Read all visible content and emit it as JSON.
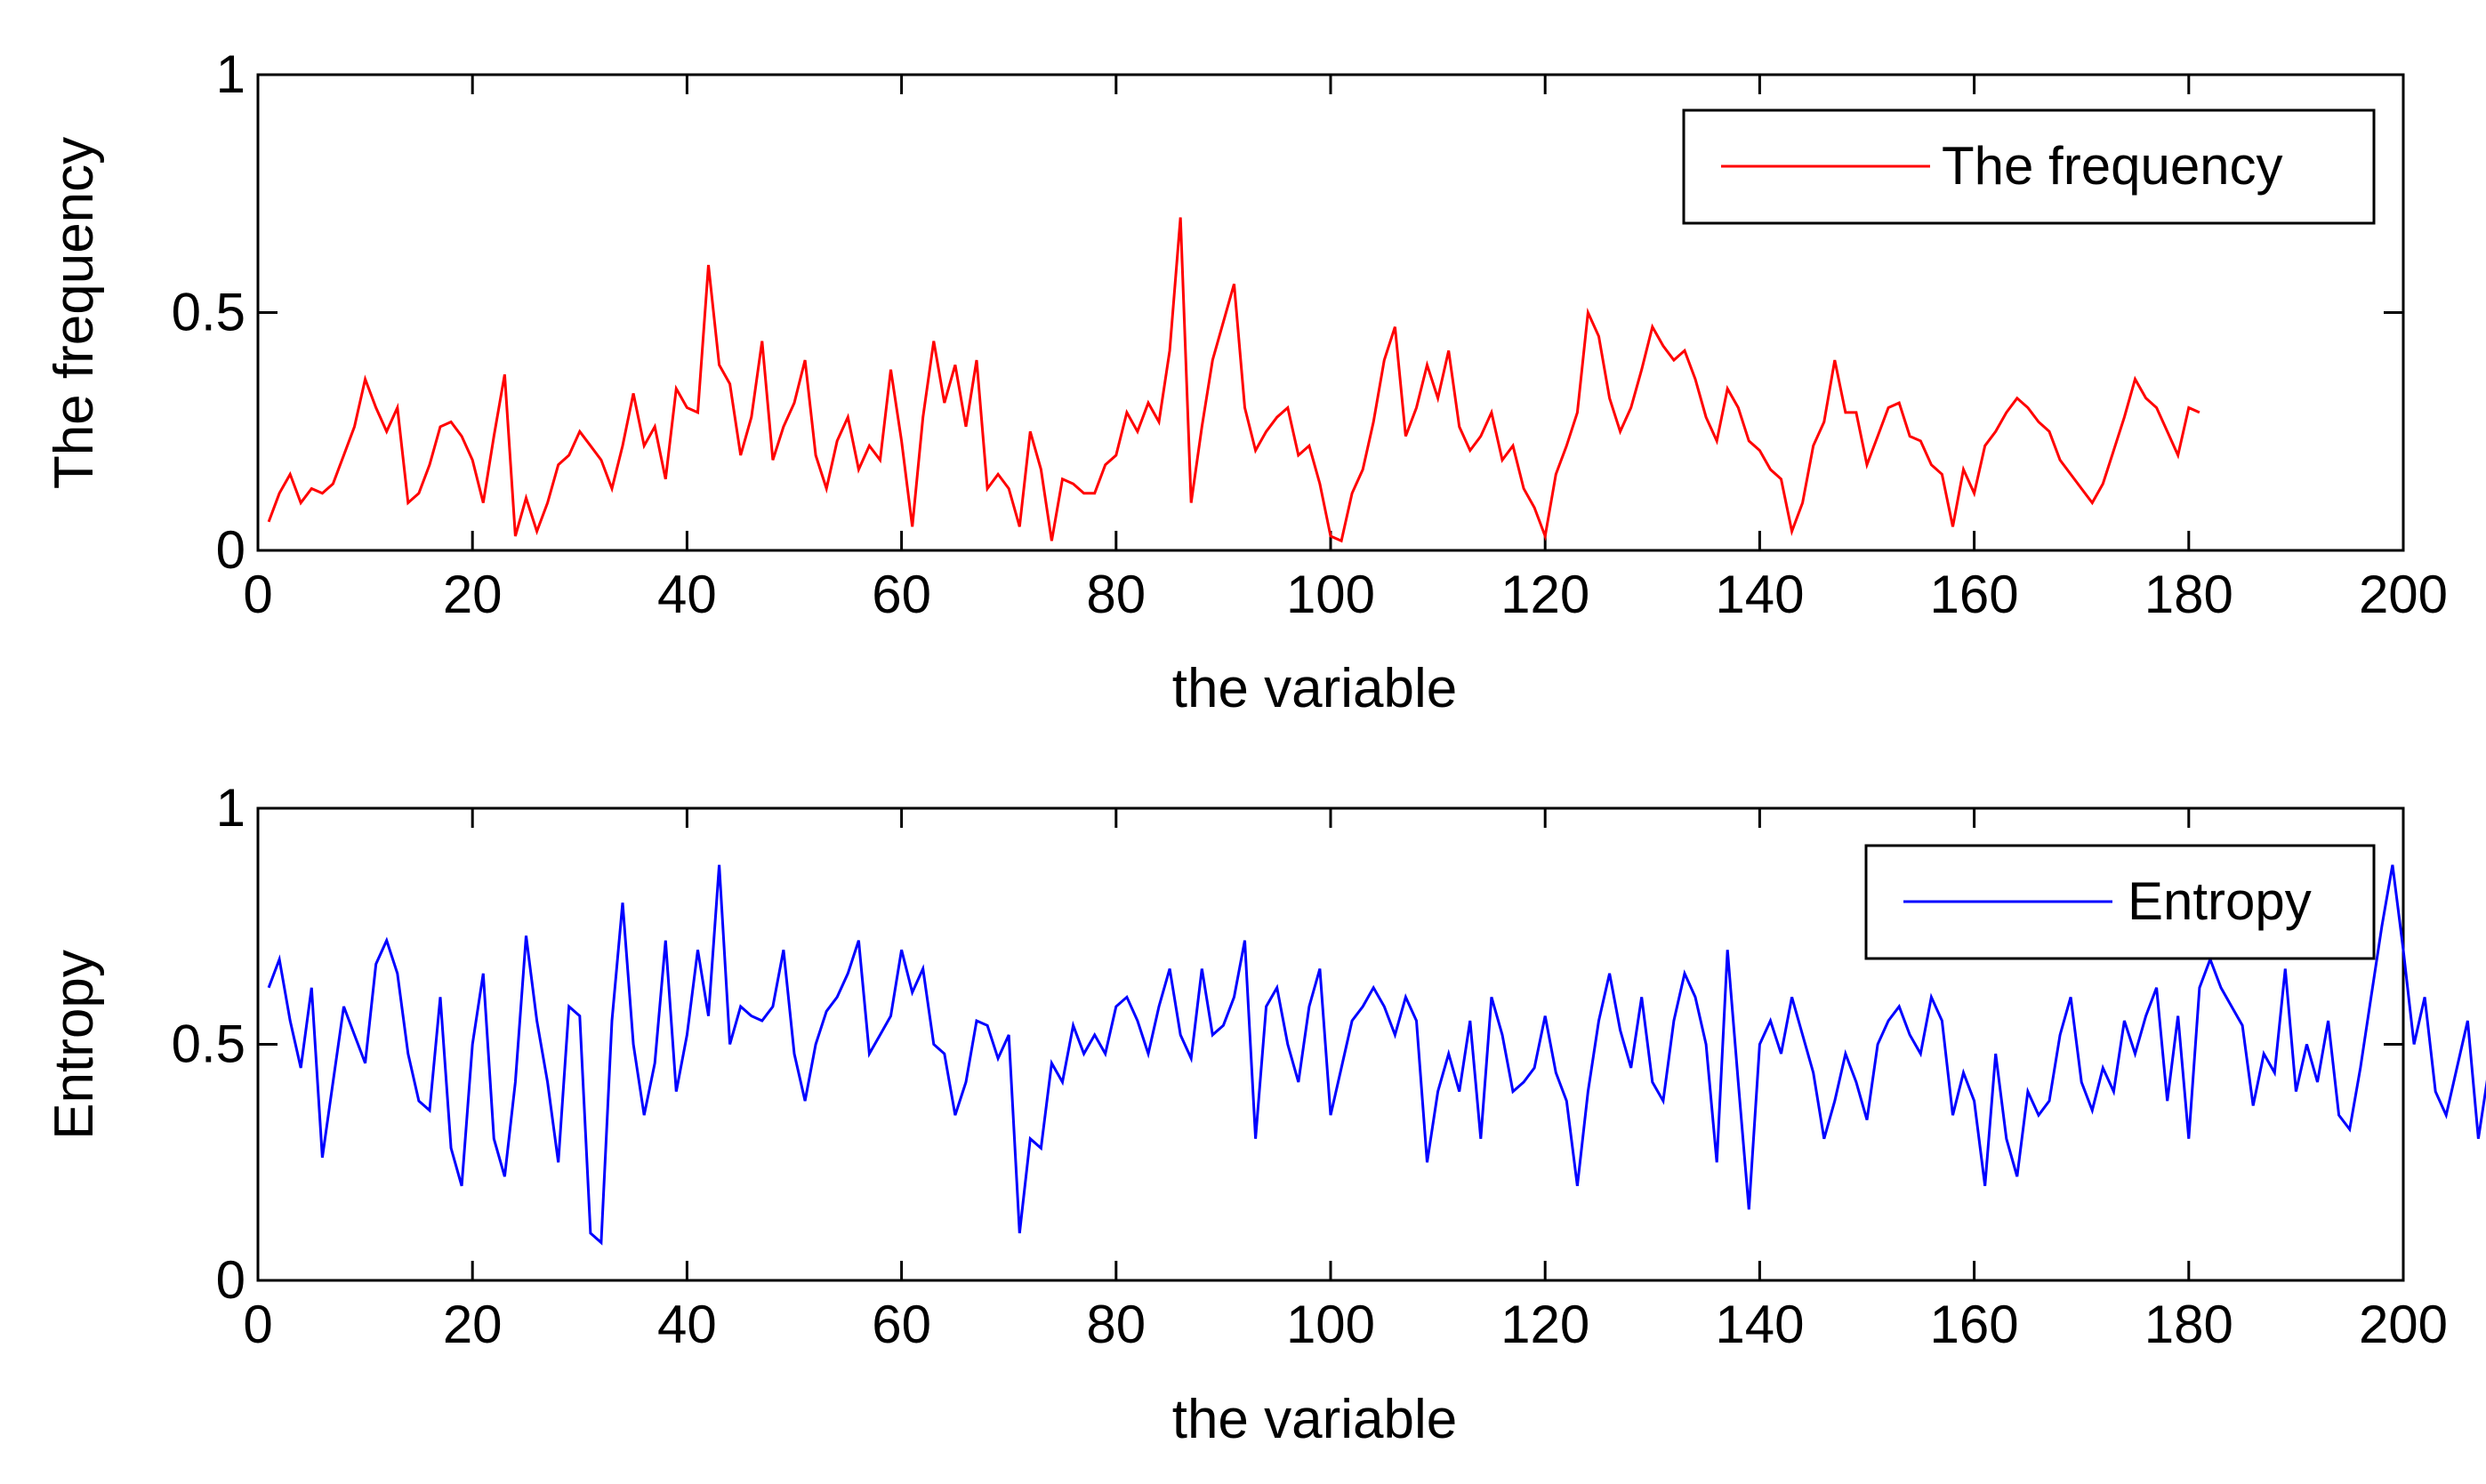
{
  "chart_data": [
    {
      "type": "line",
      "ylabel": "The frequency",
      "xlabel": "the variable",
      "xlim": [
        0,
        200
      ],
      "ylim": [
        0,
        1
      ],
      "xticks": [
        "0",
        "20",
        "40",
        "60",
        "80",
        "100",
        "120",
        "140",
        "160",
        "180",
        "200"
      ],
      "yticks": [
        "0",
        "0.5",
        "1"
      ],
      "legend": "top-right",
      "series": [
        {
          "name": "The frequency",
          "color": "#ff0000",
          "x_start": 1,
          "values": [
            0.06,
            0.12,
            0.16,
            0.1,
            0.13,
            0.12,
            0.14,
            0.2,
            0.26,
            0.36,
            0.3,
            0.25,
            0.3,
            0.1,
            0.12,
            0.18,
            0.26,
            0.27,
            0.24,
            0.19,
            0.1,
            0.24,
            0.37,
            0.03,
            0.11,
            0.04,
            0.1,
            0.18,
            0.2,
            0.25,
            0.22,
            0.19,
            0.13,
            0.22,
            0.33,
            0.22,
            0.26,
            0.15,
            0.34,
            0.3,
            0.29,
            0.6,
            0.39,
            0.35,
            0.2,
            0.28,
            0.44,
            0.19,
            0.26,
            0.31,
            0.4,
            0.2,
            0.13,
            0.23,
            0.28,
            0.17,
            0.22,
            0.19,
            0.38,
            0.23,
            0.05,
            0.28,
            0.44,
            0.31,
            0.39,
            0.26,
            0.4,
            0.13,
            0.16,
            0.13,
            0.05,
            0.25,
            0.17,
            0.02,
            0.15,
            0.14,
            0.12,
            0.12,
            0.18,
            0.2,
            0.29,
            0.25,
            0.31,
            0.27,
            0.42,
            0.7,
            0.1,
            0.26,
            0.4,
            0.48,
            0.56,
            0.3,
            0.21,
            0.25,
            0.28,
            0.3,
            0.2,
            0.22,
            0.14,
            0.03,
            0.02,
            0.12,
            0.17,
            0.27,
            0.4,
            0.47,
            0.24,
            0.3,
            0.39,
            0.32,
            0.42,
            0.26,
            0.21,
            0.24,
            0.29,
            0.19,
            0.22,
            0.13,
            0.09,
            0.03,
            0.16,
            0.22,
            0.29,
            0.5,
            0.45,
            0.32,
            0.25,
            0.3,
            0.38,
            0.47,
            0.43,
            0.4,
            0.42,
            0.36,
            0.28,
            0.23,
            0.34,
            0.3,
            0.23,
            0.21,
            0.17,
            0.15,
            0.04,
            0.1,
            0.22,
            0.27,
            0.4,
            0.29,
            0.29,
            0.18,
            0.24,
            0.3,
            0.31,
            0.24,
            0.23,
            0.18,
            0.16,
            0.05,
            0.17,
            0.12,
            0.22,
            0.25,
            0.29,
            0.32,
            0.3,
            0.27,
            0.25,
            0.19,
            0.16,
            0.13,
            0.1,
            0.14,
            0.21,
            0.28,
            0.36,
            0.32,
            0.3,
            0.25,
            0.2,
            0.3,
            0.29
          ]
        }
      ]
    },
    {
      "type": "line",
      "ylabel": "Entropy",
      "xlabel": "the variable",
      "xlim": [
        0,
        200
      ],
      "ylim": [
        0,
        1
      ],
      "xticks": [
        "0",
        "20",
        "40",
        "60",
        "80",
        "100",
        "120",
        "140",
        "160",
        "180",
        "200"
      ],
      "yticks": [
        "0",
        "0.5",
        "1"
      ],
      "legend": "top-right",
      "series": [
        {
          "name": "Entropy",
          "color": "#0000ff",
          "x_start": 1,
          "values": [
            0.62,
            0.68,
            0.55,
            0.45,
            0.62,
            0.26,
            0.42,
            0.58,
            0.52,
            0.46,
            0.67,
            0.72,
            0.65,
            0.48,
            0.38,
            0.36,
            0.6,
            0.28,
            0.2,
            0.5,
            0.65,
            0.3,
            0.22,
            0.42,
            0.73,
            0.55,
            0.42,
            0.25,
            0.58,
            0.56,
            0.1,
            0.08,
            0.55,
            0.8,
            0.5,
            0.35,
            0.46,
            0.72,
            0.4,
            0.52,
            0.7,
            0.56,
            0.88,
            0.5,
            0.58,
            0.56,
            0.55,
            0.58,
            0.7,
            0.48,
            0.38,
            0.5,
            0.57,
            0.6,
            0.65,
            0.72,
            0.48,
            0.52,
            0.56,
            0.7,
            0.61,
            0.66,
            0.5,
            0.48,
            0.35,
            0.42,
            0.55,
            0.54,
            0.47,
            0.52,
            0.1,
            0.3,
            0.28,
            0.46,
            0.42,
            0.54,
            0.48,
            0.52,
            0.48,
            0.58,
            0.6,
            0.55,
            0.48,
            0.58,
            0.66,
            0.52,
            0.47,
            0.66,
            0.52,
            0.54,
            0.6,
            0.72,
            0.3,
            0.58,
            0.62,
            0.5,
            0.42,
            0.58,
            0.66,
            0.35,
            0.45,
            0.55,
            0.58,
            0.62,
            0.58,
            0.52,
            0.6,
            0.55,
            0.25,
            0.4,
            0.48,
            0.4,
            0.55,
            0.3,
            0.6,
            0.52,
            0.4,
            0.42,
            0.45,
            0.56,
            0.44,
            0.38,
            0.2,
            0.4,
            0.55,
            0.65,
            0.53,
            0.45,
            0.6,
            0.42,
            0.38,
            0.55,
            0.65,
            0.6,
            0.5,
            0.25,
            0.7,
            0.42,
            0.15,
            0.5,
            0.55,
            0.48,
            0.6,
            0.52,
            0.44,
            0.3,
            0.38,
            0.48,
            0.42,
            0.34,
            0.5,
            0.55,
            0.58,
            0.52,
            0.48,
            0.6,
            0.55,
            0.35,
            0.44,
            0.38,
            0.2,
            0.48,
            0.3,
            0.22,
            0.4,
            0.35,
            0.38,
            0.52,
            0.6,
            0.42,
            0.36,
            0.45,
            0.4,
            0.55,
            0.48,
            0.56,
            0.62,
            0.38,
            0.56,
            0.3,
            0.62,
            0.68,
            0.62,
            0.58,
            0.54,
            0.37,
            0.48,
            0.44,
            0.66,
            0.4,
            0.5,
            0.42,
            0.55,
            0.35,
            0.32,
            0.45,
            0.6,
            0.75,
            0.88,
            0.7,
            0.5,
            0.6,
            0.4,
            0.35,
            0.45,
            0.55,
            0.3,
            0.45
          ]
        }
      ]
    }
  ]
}
